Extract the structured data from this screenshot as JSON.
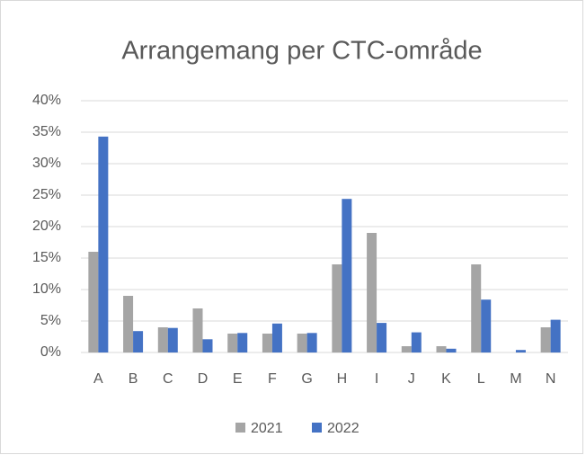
{
  "chart_data": {
    "type": "bar",
    "title": "Arrangemang per CTC-område",
    "categories": [
      "A",
      "B",
      "C",
      "D",
      "E",
      "F",
      "G",
      "H",
      "I",
      "J",
      "K",
      "L",
      "M",
      "N"
    ],
    "series": [
      {
        "name": "2021",
        "color": "#a5a5a5",
        "values": [
          16,
          9,
          4,
          7,
          3,
          3,
          3,
          14,
          19,
          1,
          1,
          14,
          0,
          4
        ]
      },
      {
        "name": "2022",
        "color": "#4472c4",
        "values": [
          34.3,
          3.4,
          3.9,
          2.1,
          3.1,
          4.6,
          3.1,
          24.4,
          4.7,
          3.2,
          0.6,
          8.4,
          0.4,
          5.2
        ]
      }
    ],
    "ylim": [
      0,
      40
    ],
    "yticks": [
      {
        "value": 0,
        "label": "0%"
      },
      {
        "value": 5,
        "label": "5%"
      },
      {
        "value": 10,
        "label": "10%"
      },
      {
        "value": 15,
        "label": "15%"
      },
      {
        "value": 20,
        "label": "20%"
      },
      {
        "value": 25,
        "label": "25%"
      },
      {
        "value": 30,
        "label": "30%"
      },
      {
        "value": 35,
        "label": "35%"
      },
      {
        "value": 40,
        "label": "40%"
      }
    ],
    "grid": true,
    "legend": "bottom"
  }
}
